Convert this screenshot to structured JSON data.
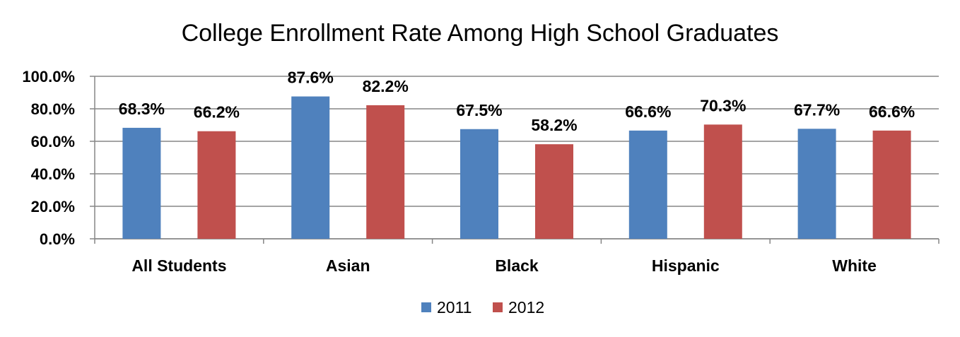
{
  "chart_data": {
    "type": "bar",
    "title": "College Enrollment Rate Among High School Graduates",
    "categories": [
      "All Students",
      "Asian",
      "Black",
      "Hispanic",
      "White"
    ],
    "series": [
      {
        "name": "2011",
        "color": "#4f81bd",
        "values": [
          68.3,
          87.6,
          67.5,
          66.6,
          67.7
        ],
        "labels": [
          "68.3%",
          "87.6%",
          "67.5%",
          "66.6%",
          "67.7%"
        ]
      },
      {
        "name": "2012",
        "color": "#c0504d",
        "values": [
          66.2,
          82.2,
          58.2,
          70.3,
          66.6
        ],
        "labels": [
          "66.2%",
          "82.2%",
          "58.2%",
          "70.3%",
          "66.6%"
        ]
      }
    ],
    "ylim": [
      0,
      100
    ],
    "yticks": [
      0,
      20,
      40,
      60,
      80,
      100
    ],
    "ytick_labels": [
      "0.0%",
      "20.0%",
      "40.0%",
      "60.0%",
      "80.0%",
      "100.0%"
    ],
    "grid": true,
    "legend_position": "bottom"
  }
}
